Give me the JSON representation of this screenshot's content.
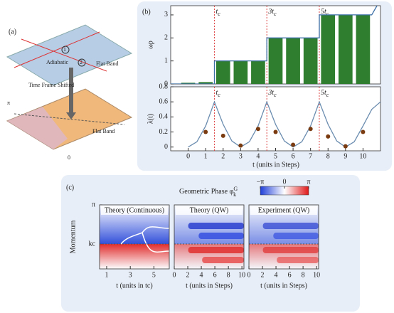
{
  "panel_a": {
    "label": "(a)",
    "texts": [
      "Flat Band",
      "Flat Band",
      "Time Frame Shifted",
      "Adiabatic",
      "π",
      "0",
      "1",
      "2"
    ]
  },
  "panel_b": {
    "label": "(b)",
    "xlabel": "t (units in Steps)"
  },
  "chart_data": [
    {
      "type": "bar",
      "ylabel": "ωp",
      "xlim": [
        -1,
        11
      ],
      "ylim": [
        0,
        3.4
      ],
      "yticks": [
        0,
        1,
        2,
        3
      ],
      "annotations": [
        {
          "x": 1.5,
          "label": "t",
          "sub": "c"
        },
        {
          "x": 4.5,
          "label": "3t",
          "sub": "c"
        },
        {
          "x": 7.5,
          "label": "5t",
          "sub": "c"
        }
      ],
      "series": [
        {
          "type": "bar",
          "color": "#2f7d2f",
          "x": [
            0,
            1,
            2,
            3,
            4,
            5,
            6,
            7,
            8,
            9,
            10
          ],
          "values": [
            0.05,
            0.08,
            1,
            1,
            1,
            2,
            2,
            2,
            3,
            3,
            3
          ]
        },
        {
          "type": "line",
          "color": "#3a6ea5",
          "x": [
            -1,
            1.5,
            1.5,
            4.5,
            4.5,
            7.5,
            7.5,
            10.5,
            10.8
          ],
          "values": [
            0,
            0,
            1,
            1,
            2,
            2,
            3,
            3,
            3.4
          ]
        }
      ]
    },
    {
      "type": "line",
      "ylabel": "λ(t)",
      "xlim": [
        -1,
        11
      ],
      "xticks": [
        0,
        1,
        2,
        3,
        4,
        5,
        6,
        7,
        8,
        9,
        10
      ],
      "ylim": [
        -0.05,
        0.8
      ],
      "yticks": [
        0,
        0.2,
        0.4,
        0.6,
        0.8
      ],
      "annotations": [
        {
          "x": 1.5,
          "label": "t",
          "sub": "c"
        },
        {
          "x": 4.5,
          "label": "3t",
          "sub": "c"
        },
        {
          "x": 7.5,
          "label": "5t",
          "sub": "c"
        }
      ],
      "series": [
        {
          "type": "line",
          "color": "#6a8caf",
          "x": [
            0,
            0.5,
            1,
            1.5,
            2,
            2.5,
            3,
            3.5,
            4,
            4.5,
            5,
            5.5,
            6,
            6.5,
            7,
            7.5,
            8,
            8.5,
            9,
            9.5,
            10,
            10.5,
            11
          ],
          "values": [
            0,
            0.07,
            0.28,
            0.6,
            0.3,
            0.08,
            0,
            0.07,
            0.28,
            0.6,
            0.3,
            0.08,
            0,
            0.07,
            0.28,
            0.6,
            0.3,
            0.08,
            0,
            0.07,
            0.28,
            0.5,
            0.6
          ]
        },
        {
          "type": "scatter",
          "color": "#7a3b10",
          "x": [
            1,
            2,
            3,
            4,
            5,
            6,
            7,
            8,
            9,
            10
          ],
          "values": [
            0.2,
            0.15,
            0.02,
            0.24,
            0.2,
            0.03,
            0.24,
            0.14,
            0.01,
            0.2
          ]
        }
      ]
    }
  ],
  "panel_c": {
    "label": "(c)",
    "title": "Geometric Phase φ",
    "title_sub": "k",
    "title_sup": "G",
    "colorbar_ticks": [
      {
        "value": -3.1416,
        "label": "−π"
      },
      0,
      {
        "value": 3.1416,
        "label": "π"
      }
    ],
    "colorbar_lim": [
      -3.1416,
      3.1416
    ],
    "ylabel": "Momentum",
    "ylim": [
      0,
      3.1416
    ],
    "yticks": [
      {
        "value": 3.1416,
        "label": "π"
      },
      {
        "value": 1.22,
        "label": "kc"
      }
    ],
    "panels": [
      {
        "title": "Theory (Continuous)",
        "xlabel": "t (units in tc)",
        "xlim": [
          0.4,
          6.3
        ],
        "xticks": [
          1,
          3,
          5
        ]
      },
      {
        "title": "Theory (QW)",
        "xlabel": "t (units in Steps)",
        "xlim": [
          0,
          10.3
        ],
        "xticks": [
          0,
          2,
          4,
          6,
          8,
          10
        ]
      },
      {
        "title": "Experiment (QW)",
        "xlabel": "t (units in Steps)",
        "xlim": [
          0,
          10.3
        ],
        "xticks": [
          0,
          2,
          4,
          6,
          8,
          10
        ]
      }
    ]
  }
}
